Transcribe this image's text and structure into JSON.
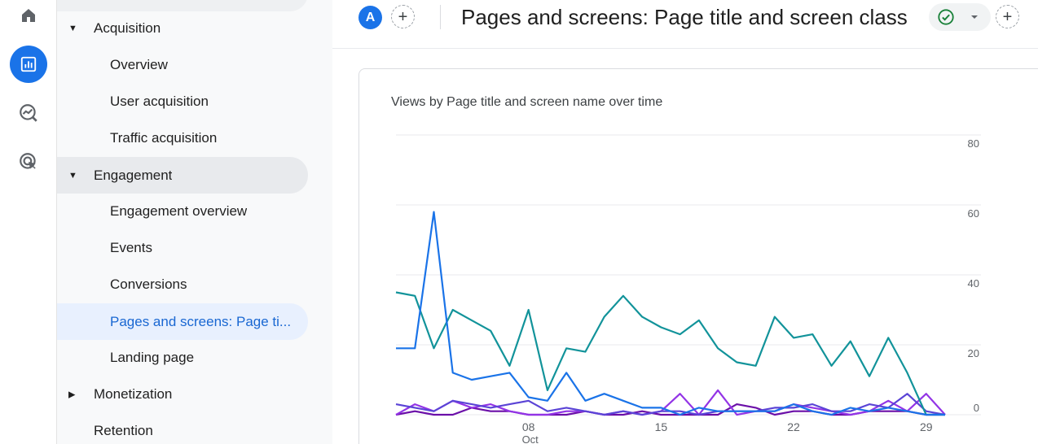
{
  "nav": {
    "items": [
      {
        "label": "Acquisition",
        "kind": "section",
        "caret": "down"
      },
      {
        "label": "Overview",
        "kind": "child"
      },
      {
        "label": "User acquisition",
        "kind": "child"
      },
      {
        "label": "Traffic acquisition",
        "kind": "child"
      },
      {
        "label": "Engagement",
        "kind": "section",
        "caret": "down"
      },
      {
        "label": "Engagement overview",
        "kind": "child"
      },
      {
        "label": "Events",
        "kind": "child"
      },
      {
        "label": "Conversions",
        "kind": "child"
      },
      {
        "label": "Pages and screens: Page ti...",
        "kind": "child",
        "selected": true
      },
      {
        "label": "Landing page",
        "kind": "child"
      },
      {
        "label": "Monetization",
        "kind": "section",
        "caret": "right"
      },
      {
        "label": "Retention",
        "kind": "section"
      }
    ]
  },
  "rail": {
    "icons": [
      "home-icon",
      "reports-icon",
      "explore-icon",
      "advertising-icon"
    ],
    "active": "reports-icon"
  },
  "header": {
    "avatar_letter": "A",
    "title": "Pages and screens: Page title and screen class"
  },
  "colors": {
    "accent": "#1a73e8",
    "selected_bg": "#e8f0fe",
    "selected_text": "#1967d2",
    "check_green": "#188038"
  },
  "chart_data": {
    "type": "line",
    "title": "Views by Page title and screen name over time",
    "x": [
      1,
      2,
      3,
      4,
      5,
      6,
      7,
      8,
      9,
      10,
      11,
      12,
      13,
      14,
      15,
      16,
      17,
      18,
      19,
      20,
      21,
      22,
      23,
      24,
      25,
      26,
      27,
      28,
      29,
      30
    ],
    "x_tick_labels": [
      {
        "x": 8,
        "label": "08",
        "sub": "Oct"
      },
      {
        "x": 15,
        "label": "15"
      },
      {
        "x": 22,
        "label": "22"
      },
      {
        "x": 29,
        "label": "29"
      }
    ],
    "ylim": [
      0,
      80
    ],
    "y_ticks": [
      0,
      20,
      40,
      60,
      80
    ],
    "grid": true,
    "series": [
      {
        "color": "#1a73e8",
        "values": [
          19,
          19,
          58,
          12,
          10,
          11,
          12,
          5,
          4,
          12,
          4,
          6,
          4,
          2,
          2,
          0,
          2,
          1,
          1,
          1,
          1,
          3,
          1,
          0,
          2,
          1,
          2,
          1,
          0,
          0
        ]
      },
      {
        "color": "#12939a",
        "values": [
          35,
          34,
          19,
          30,
          27,
          24,
          14,
          30,
          7,
          19,
          18,
          28,
          34,
          28,
          25,
          23,
          27,
          19,
          15,
          14,
          28,
          22,
          23,
          14,
          21,
          11,
          22,
          12,
          0,
          0
        ]
      },
      {
        "color": "#5b44d6",
        "values": [
          3,
          2,
          1,
          4,
          3,
          2,
          3,
          4,
          1,
          2,
          1,
          0,
          1,
          0,
          1,
          1,
          0,
          1,
          1,
          1,
          2,
          2,
          3,
          1,
          1,
          3,
          2,
          6,
          1,
          0
        ]
      },
      {
        "color": "#9334e6",
        "values": [
          0,
          3,
          1,
          4,
          2,
          3,
          1,
          0,
          0,
          1,
          1,
          0,
          1,
          0,
          1,
          6,
          0,
          7,
          0,
          1,
          1,
          3,
          2,
          1,
          0,
          1,
          4,
          1,
          6,
          0
        ]
      },
      {
        "color": "#6b0fa8",
        "values": [
          0,
          1,
          0,
          0,
          2,
          1,
          1,
          0,
          0,
          0,
          1,
          0,
          0,
          1,
          0,
          0,
          0,
          0,
          3,
          2,
          0,
          1,
          1,
          0,
          0,
          1,
          1,
          1,
          0,
          0
        ]
      }
    ]
  }
}
